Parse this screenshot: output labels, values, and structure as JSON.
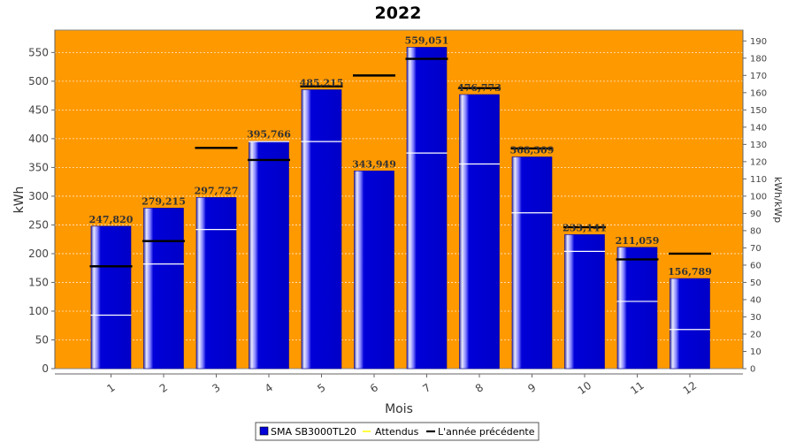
{
  "chart_data": {
    "type": "bar",
    "title": "2022",
    "xlabel": "Mois",
    "ylabel": "kWh",
    "y2label": "kWh/kWp",
    "categories": [
      "1",
      "2",
      "3",
      "4",
      "5",
      "6",
      "7",
      "8",
      "9",
      "10",
      "11",
      "12"
    ],
    "ylim": [
      0,
      589
    ],
    "y2lim": [
      0,
      196.3
    ],
    "yticks": [
      0,
      50,
      100,
      150,
      200,
      250,
      300,
      350,
      400,
      450,
      500,
      550
    ],
    "y2ticks": [
      0,
      10,
      20,
      30,
      40,
      50,
      60,
      70,
      80,
      90,
      100,
      110,
      120,
      130,
      140,
      150,
      160,
      170,
      180,
      190
    ],
    "grid": true,
    "series": [
      {
        "name": "SMA SB3000TL20",
        "kind": "bar",
        "color": "#0000d8",
        "values": [
          247.82,
          279.215,
          297.727,
          395.766,
          485.215,
          343.949,
          559.051,
          476.773,
          368.309,
          233.141,
          211.059,
          156.789
        ],
        "labels": [
          "247,820",
          "279,215",
          "297,727",
          "395,766",
          "485,215",
          "343,949",
          "559,051",
          "476,773",
          "368,309",
          "233,141",
          "211,059",
          "156,789"
        ]
      },
      {
        "name": "Attendus",
        "kind": "marker",
        "color": "#ffff00",
        "values": [
          93,
          182,
          242,
          395,
          395,
          0,
          375,
          356,
          271,
          204,
          117,
          68
        ]
      },
      {
        "name": "L'année précédente",
        "kind": "marker",
        "color": "#000000",
        "values": [
          178,
          222,
          384,
          363,
          491,
          510,
          539,
          488,
          383,
          246,
          190,
          200
        ]
      }
    ],
    "legend_position": "bottom",
    "plot_background": "#ff9900"
  }
}
